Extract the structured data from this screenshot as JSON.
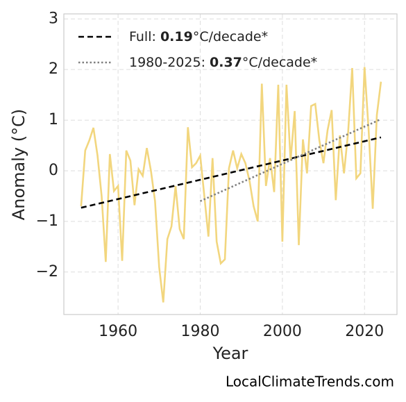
{
  "chart_data": {
    "type": "line",
    "xlabel": "Year",
    "ylabel": "Anomaly (°C)",
    "watermark": "LocalClimateTrends.com",
    "x": [
      1951,
      1952,
      1953,
      1954,
      1955,
      1956,
      1957,
      1958,
      1959,
      1960,
      1961,
      1962,
      1963,
      1964,
      1965,
      1966,
      1967,
      1968,
      1969,
      1970,
      1971,
      1972,
      1973,
      1974,
      1975,
      1976,
      1977,
      1978,
      1979,
      1980,
      1981,
      1982,
      1983,
      1984,
      1985,
      1986,
      1987,
      1988,
      1989,
      1990,
      1991,
      1992,
      1993,
      1994,
      1995,
      1996,
      1997,
      1998,
      1999,
      2000,
      2001,
      2002,
      2003,
      2004,
      2005,
      2006,
      2007,
      2008,
      2009,
      2010,
      2011,
      2012,
      2013,
      2014,
      2015,
      2016,
      2017,
      2018,
      2019,
      2020,
      2021,
      2022,
      2023,
      2024
    ],
    "series": [
      {
        "color": "#f2d67e",
        "values": [
          -0.7,
          0.4,
          0.6,
          0.85,
          0.3,
          -0.5,
          -1.8,
          0.33,
          -0.4,
          -0.3,
          -1.78,
          0.4,
          0.2,
          -0.68,
          0.03,
          -0.1,
          0.45,
          0.0,
          -0.6,
          -1.9,
          -2.6,
          -1.35,
          -1.1,
          -0.3,
          -1.15,
          -1.35,
          0.86,
          0.07,
          0.15,
          0.3,
          -0.5,
          -1.3,
          0.25,
          -1.4,
          -1.83,
          -1.75,
          0.05,
          0.4,
          0.05,
          0.33,
          0.15,
          -0.2,
          -0.7,
          -1.0,
          1.72,
          -0.3,
          0.25,
          -0.42,
          1.7,
          -1.4,
          1.7,
          0.2,
          1.18,
          -1.47,
          0.62,
          -0.05,
          1.28,
          1.32,
          0.6,
          0.15,
          0.8,
          1.2,
          -0.58,
          0.7,
          -0.05,
          0.75,
          2.03,
          -0.15,
          -0.05,
          2.05,
          0.8,
          -0.75,
          1.1,
          1.76
        ]
      },
      {
        "name_parts": [
          "Full: ",
          "0.19",
          "°C/decade*"
        ],
        "color": "#000000",
        "style": "dashed",
        "x": [
          1951,
          2024
        ],
        "values": [
          -0.73,
          0.66
        ]
      },
      {
        "name_parts": [
          "1980-2025: ",
          "0.37",
          "°C/decade*"
        ],
        "color": "#808080",
        "style": "dotted",
        "x": [
          1980,
          2024
        ],
        "values": [
          -0.6,
          1.02
        ]
      }
    ],
    "xlim": [
      1946.8,
      2027.9
    ],
    "xticks": [
      1960,
      1980,
      2000,
      2020
    ],
    "ylim": [
      -2.84,
      3.1
    ],
    "yticks": [
      {
        "value": -2,
        "label": "−2"
      },
      {
        "value": -1,
        "label": "−1"
      },
      0,
      1,
      2,
      3
    ],
    "grid": true
  }
}
